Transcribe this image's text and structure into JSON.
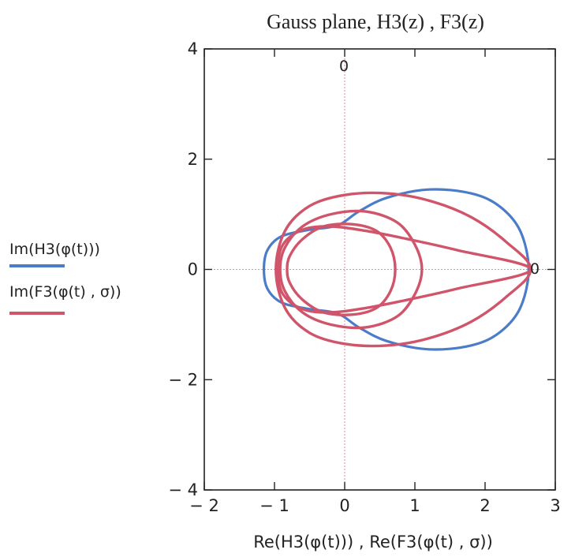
{
  "chart_data": {
    "type": "line",
    "title": "Gauss plane, H3(z) , F3(z)",
    "xlabel": "Re(H3(φ(t))) , Re(F3(φ(t) , σ))",
    "ylabel": "",
    "xlim": [
      -2,
      3
    ],
    "ylim": [
      -4,
      4
    ],
    "xticks": [
      "− 2",
      "− 1",
      "0",
      "1",
      "2",
      "3"
    ],
    "yticks": [
      "4",
      "2",
      "0",
      "− 2",
      "− 4"
    ],
    "axis_markers": {
      "top": "0",
      "right": "0"
    },
    "legend": {
      "placement": "left"
    },
    "series": [
      {
        "name": "Im(H3(φ(t)))",
        "color": "#4a7cc9",
        "points": [
          [
            2.62,
            0.0
          ],
          [
            2.5,
            0.7
          ],
          [
            2.2,
            1.15
          ],
          [
            1.8,
            1.38
          ],
          [
            1.2,
            1.45
          ],
          [
            0.6,
            1.3
          ],
          [
            0.2,
            1.05
          ],
          [
            -0.1,
            0.8
          ],
          [
            -0.5,
            0.72
          ],
          [
            -0.9,
            0.6
          ],
          [
            -1.1,
            0.35
          ],
          [
            -1.15,
            0.0
          ],
          [
            -1.1,
            -0.35
          ],
          [
            -0.9,
            -0.6
          ],
          [
            -0.5,
            -0.72
          ],
          [
            -0.1,
            -0.8
          ],
          [
            0.2,
            -1.05
          ],
          [
            0.6,
            -1.3
          ],
          [
            1.2,
            -1.45
          ],
          [
            1.8,
            -1.38
          ],
          [
            2.2,
            -1.15
          ],
          [
            2.5,
            -0.7
          ],
          [
            2.62,
            0.0
          ]
        ]
      },
      {
        "name": "Im(F3(φ(t) , σ))",
        "color": "#d0546a",
        "loops": [
          [
            [
              2.65,
              0.0
            ],
            [
              2.3,
              0.5
            ],
            [
              1.8,
              0.95
            ],
            [
              1.2,
              1.25
            ],
            [
              0.6,
              1.38
            ],
            [
              0.0,
              1.35
            ],
            [
              -0.5,
              1.15
            ],
            [
              -0.85,
              0.7
            ],
            [
              -0.98,
              0.0
            ],
            [
              -0.85,
              -0.7
            ],
            [
              -0.5,
              -1.15
            ],
            [
              0.0,
              -1.35
            ],
            [
              0.6,
              -1.38
            ],
            [
              1.2,
              -1.25
            ],
            [
              1.8,
              -0.95
            ],
            [
              2.3,
              -0.5
            ],
            [
              2.65,
              0.0
            ]
          ],
          [
            [
              2.65,
              0.0
            ],
            [
              1.6,
              0.35
            ],
            [
              0.9,
              0.55
            ],
            [
              0.3,
              0.7
            ],
            [
              -0.2,
              0.78
            ],
            [
              -0.6,
              0.72
            ],
            [
              -0.88,
              0.45
            ],
            [
              -0.95,
              0.0
            ],
            [
              -0.88,
              -0.45
            ],
            [
              -0.6,
              -0.72
            ],
            [
              -0.2,
              -0.78
            ],
            [
              0.3,
              -0.7
            ],
            [
              0.9,
              -0.55
            ],
            [
              1.6,
              -0.35
            ],
            [
              2.65,
              0.0
            ]
          ],
          [
            [
              1.1,
              0.0
            ],
            [
              1.0,
              0.45
            ],
            [
              0.75,
              0.85
            ],
            [
              0.3,
              1.05
            ],
            [
              -0.2,
              1.0
            ],
            [
              -0.6,
              0.78
            ],
            [
              -0.85,
              0.4
            ],
            [
              -0.92,
              0.0
            ],
            [
              -0.85,
              -0.4
            ],
            [
              -0.6,
              -0.78
            ],
            [
              -0.2,
              -1.0
            ],
            [
              0.3,
              -1.05
            ],
            [
              0.75,
              -0.85
            ],
            [
              1.0,
              -0.45
            ],
            [
              1.1,
              0.0
            ]
          ],
          [
            [
              0.72,
              0.0
            ],
            [
              0.65,
              0.4
            ],
            [
              0.45,
              0.7
            ],
            [
              0.1,
              0.82
            ],
            [
              -0.3,
              0.78
            ],
            [
              -0.6,
              0.55
            ],
            [
              -0.78,
              0.25
            ],
            [
              -0.82,
              0.0
            ],
            [
              -0.78,
              -0.25
            ],
            [
              -0.6,
              -0.55
            ],
            [
              -0.3,
              -0.78
            ],
            [
              0.1,
              -0.82
            ],
            [
              0.45,
              -0.7
            ],
            [
              0.65,
              -0.4
            ],
            [
              0.72,
              0.0
            ]
          ]
        ]
      }
    ]
  }
}
